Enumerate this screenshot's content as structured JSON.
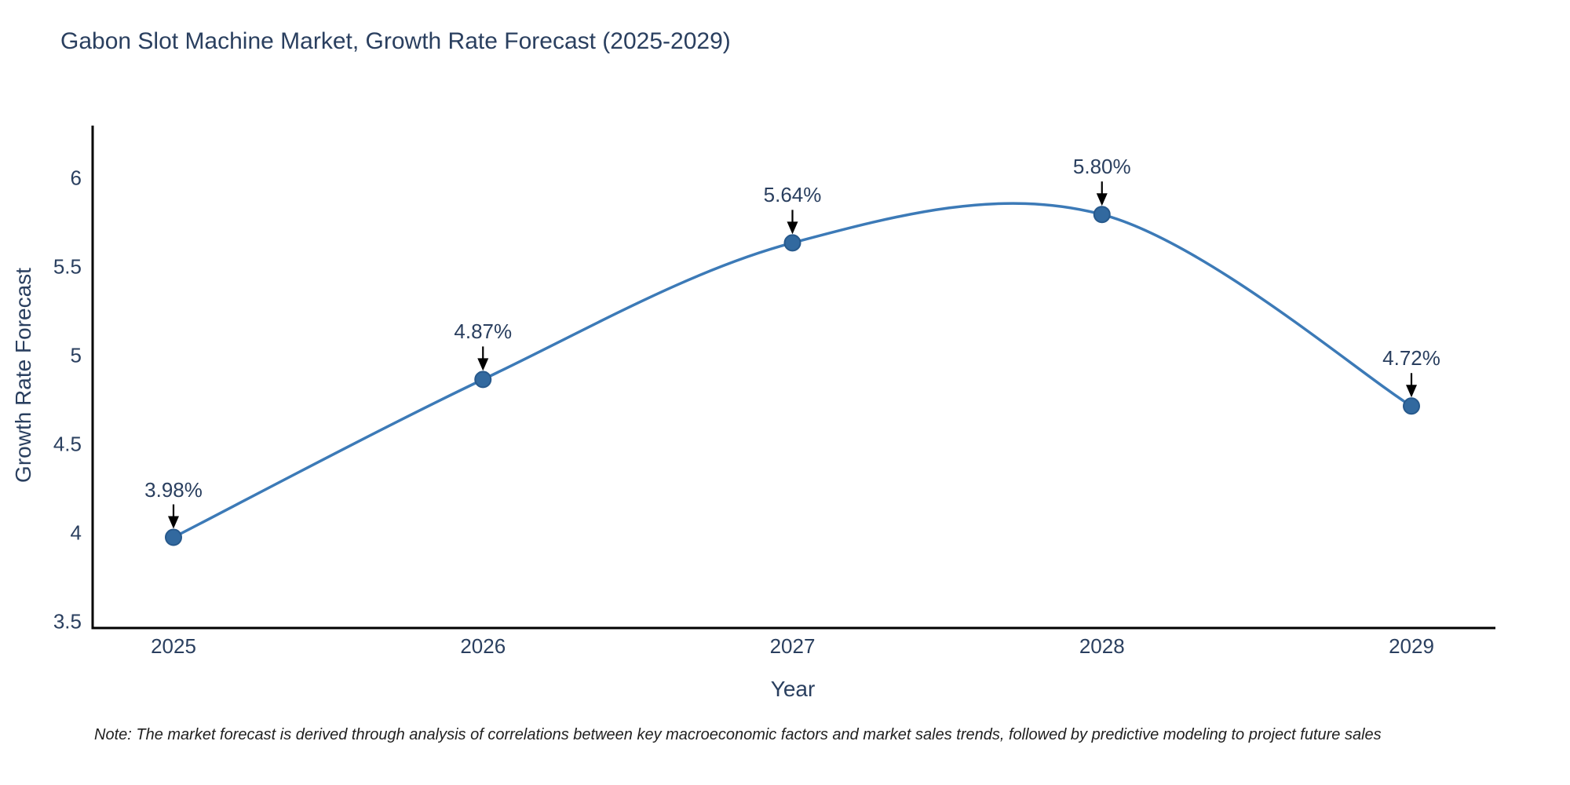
{
  "chart": {
    "title": "Gabon Slot Machine Market, Growth Rate Forecast (2025-2029)",
    "xlabel": "Year",
    "ylabel": "Growth Rate Forecast"
  },
  "chart_data": {
    "type": "line",
    "line_shape": "spline",
    "categories": [
      "2025",
      "2026",
      "2027",
      "2028",
      "2029"
    ],
    "values": [
      3.98,
      4.87,
      5.64,
      5.8,
      4.72
    ],
    "point_labels": [
      "3.98%",
      "4.87%",
      "5.64%",
      "5.80%",
      "4.72%"
    ],
    "series": [
      {
        "name": "Growth Rate Forecast",
        "values": [
          3.98,
          4.87,
          5.64,
          5.8,
          4.72
        ]
      }
    ],
    "title": "Gabon Slot Machine Market, Growth Rate Forecast (2025-2029)",
    "xlabel": "Year",
    "ylabel": "Growth Rate Forecast",
    "ylim": [
      3.46,
      6.33
    ],
    "yticks": [
      3.5,
      4,
      4.5,
      5,
      5.5,
      6
    ],
    "ytick_labels": [
      "3.5",
      "4",
      "4.5",
      "5",
      "5.5",
      "6"
    ],
    "grid": "off",
    "legend": "none",
    "annotations_style": "value label with black arrow pointing down to each marker",
    "colors": {
      "line": "#3c7ab7",
      "marker_fill": "#32699f",
      "marker_edge": "#27598c",
      "axis": "#000000",
      "text": "#2a3f5f",
      "arrow": "#000000"
    }
  },
  "note": {
    "text": "Note: The market forecast is derived through analysis of correlations between key macroeconomic factors and market sales trends, followed by predictive modeling to project future sales"
  }
}
